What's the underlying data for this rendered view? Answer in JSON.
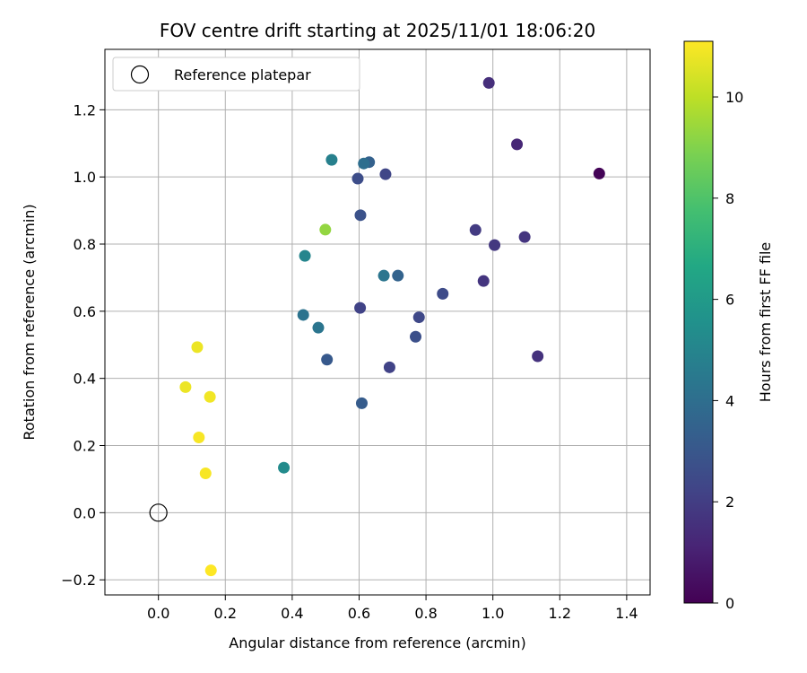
{
  "chart_data": {
    "type": "scatter",
    "title": "FOV centre drift starting at 2025/11/01 18:06:20",
    "xlabel": "Angular distance from reference (arcmin)",
    "ylabel": "Rotation from reference (arcmin)",
    "xlim": [
      -0.16,
      1.47
    ],
    "ylim": [
      -0.245,
      1.38
    ],
    "xticks": [
      0.0,
      0.2,
      0.4,
      0.6,
      0.8,
      1.0,
      1.2,
      1.4
    ],
    "xtick_labels": [
      "0.0",
      "0.2",
      "0.4",
      "0.6",
      "0.8",
      "1.0",
      "1.2",
      "1.4"
    ],
    "yticks": [
      -0.2,
      0.0,
      0.2,
      0.4,
      0.6,
      0.8,
      1.0,
      1.2
    ],
    "ytick_labels": [
      "−0.2",
      "0.0",
      "0.2",
      "0.4",
      "0.6",
      "0.8",
      "1.0",
      "1.2"
    ],
    "grid": true,
    "legend": {
      "placement": "upper-left",
      "entries": [
        "Reference platepar"
      ]
    },
    "reference_point": {
      "x": 0.0,
      "y": 0.0
    },
    "colorbar": {
      "label": "Hours from first FF file",
      "colormap": "viridis",
      "range": [
        0,
        11.1
      ],
      "ticks": [
        0,
        2,
        4,
        6,
        8,
        10
      ],
      "tick_labels": [
        "0",
        "2",
        "4",
        "6",
        "8",
        "10"
      ]
    },
    "points": [
      {
        "x": 1.318,
        "y": 1.01,
        "c": 0.1
      },
      {
        "x": 0.988,
        "y": 1.28,
        "c": 1.5
      },
      {
        "x": 1.072,
        "y": 1.097,
        "c": 1.2
      },
      {
        "x": 1.095,
        "y": 0.821,
        "c": 1.7
      },
      {
        "x": 1.134,
        "y": 0.466,
        "c": 1.6
      },
      {
        "x": 1.005,
        "y": 0.797,
        "c": 1.8
      },
      {
        "x": 0.948,
        "y": 0.842,
        "c": 1.9
      },
      {
        "x": 0.972,
        "y": 0.69,
        "c": 1.7
      },
      {
        "x": 0.85,
        "y": 0.652,
        "c": 2.5
      },
      {
        "x": 0.779,
        "y": 0.582,
        "c": 2.4
      },
      {
        "x": 0.769,
        "y": 0.524,
        "c": 2.7
      },
      {
        "x": 0.691,
        "y": 0.433,
        "c": 2.2
      },
      {
        "x": 0.679,
        "y": 1.008,
        "c": 2.3
      },
      {
        "x": 0.596,
        "y": 0.995,
        "c": 2.6
      },
      {
        "x": 0.63,
        "y": 1.044,
        "c": 3.4
      },
      {
        "x": 0.614,
        "y": 1.04,
        "c": 4.0
      },
      {
        "x": 0.604,
        "y": 0.886,
        "c": 2.8
      },
      {
        "x": 0.603,
        "y": 0.61,
        "c": 2.2
      },
      {
        "x": 0.608,
        "y": 0.326,
        "c": 3.2
      },
      {
        "x": 0.716,
        "y": 0.706,
        "c": 3.5
      },
      {
        "x": 0.674,
        "y": 0.706,
        "c": 4.3
      },
      {
        "x": 0.518,
        "y": 1.051,
        "c": 4.8
      },
      {
        "x": 0.499,
        "y": 0.843,
        "c": 9.3
      },
      {
        "x": 0.438,
        "y": 0.765,
        "c": 5.0
      },
      {
        "x": 0.433,
        "y": 0.589,
        "c": 4.2
      },
      {
        "x": 0.478,
        "y": 0.551,
        "c": 4.3
      },
      {
        "x": 0.504,
        "y": 0.456,
        "c": 3.1
      },
      {
        "x": 0.375,
        "y": 0.134,
        "c": 5.3
      },
      {
        "x": 0.116,
        "y": 0.493,
        "c": 10.8
      },
      {
        "x": 0.081,
        "y": 0.374,
        "c": 10.8
      },
      {
        "x": 0.154,
        "y": 0.345,
        "c": 10.9
      },
      {
        "x": 0.121,
        "y": 0.224,
        "c": 11.0
      },
      {
        "x": 0.141,
        "y": 0.117,
        "c": 11.0
      },
      {
        "x": 0.157,
        "y": -0.172,
        "c": 11.1
      }
    ]
  }
}
